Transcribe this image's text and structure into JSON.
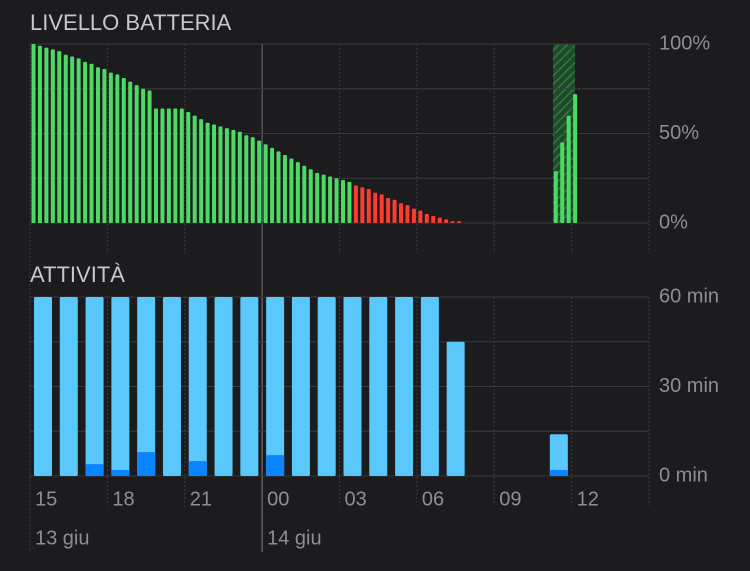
{
  "chart_data": [
    {
      "type": "bar",
      "title": "LIVELLO BATTERIA",
      "series": [
        {
          "color": "#4cd964",
          "values": [
            100,
            99,
            98,
            97,
            96,
            94,
            93,
            92,
            90,
            89,
            87,
            86,
            84,
            83,
            81,
            79,
            77,
            75,
            74,
            64,
            64,
            64,
            64,
            64,
            62,
            60,
            58,
            56,
            55,
            54,
            53,
            52,
            51,
            49,
            48,
            46,
            44,
            42,
            40,
            38,
            36,
            34,
            32,
            30,
            28,
            27,
            26,
            25,
            24,
            23,
            null,
            null,
            null,
            null,
            null,
            null,
            null,
            null,
            null,
            null,
            null,
            null,
            null,
            null,
            null,
            null,
            null,
            null,
            null,
            null,
            null,
            null,
            null,
            null,
            null,
            null,
            null,
            null,
            null,
            null,
            null,
            29,
            45,
            60,
            72
          ]
        },
        {
          "color": "#ff3b30",
          "values": [
            null,
            null,
            null,
            null,
            null,
            null,
            null,
            null,
            null,
            null,
            null,
            null,
            null,
            null,
            null,
            null,
            null,
            null,
            null,
            null,
            null,
            null,
            null,
            null,
            null,
            null,
            null,
            null,
            null,
            null,
            null,
            null,
            null,
            null,
            null,
            null,
            null,
            null,
            null,
            null,
            null,
            null,
            null,
            null,
            null,
            null,
            null,
            null,
            null,
            null,
            21,
            20,
            19,
            17,
            16,
            14,
            13,
            11,
            10,
            8,
            7,
            5,
            4,
            3,
            2,
            1,
            1,
            null,
            null,
            null,
            null,
            null,
            null,
            null,
            null,
            null,
            null,
            null,
            null,
            null,
            null,
            null,
            null,
            null,
            null
          ]
        }
      ],
      "ylim": [
        0,
        100
      ],
      "yticks": [
        {
          "value": 0,
          "label": "0%"
        },
        {
          "value": 50,
          "label": "50%"
        },
        {
          "value": 100,
          "label": "100%"
        }
      ],
      "grid": true
    },
    {
      "type": "bar",
      "title": "ATTIVITÀ",
      "series": [
        {
          "color": "#5ac8fa",
          "values": [
            60,
            60,
            60,
            60,
            60,
            60,
            60,
            60,
            60,
            60,
            60,
            60,
            60,
            60,
            60,
            60,
            45,
            null,
            null,
            null,
            14
          ]
        },
        {
          "color": "#0a84ff",
          "values": [
            null,
            null,
            4,
            2,
            8,
            null,
            5,
            null,
            null,
            7,
            null,
            null,
            null,
            null,
            null,
            null,
            null,
            null,
            null,
            null,
            2
          ]
        }
      ],
      "ylim": [
        0,
        60
      ],
      "yticks": [
        {
          "value": 0,
          "label": "0 min"
        },
        {
          "value": 30,
          "label": "30 min"
        },
        {
          "value": 60,
          "label": "60 min"
        }
      ],
      "x_labels": [
        "15",
        "18",
        "21",
        "00",
        "03",
        "06",
        "09",
        "12"
      ],
      "date_labels": [
        "13 giu",
        "14 giu"
      ],
      "grid": true
    }
  ]
}
